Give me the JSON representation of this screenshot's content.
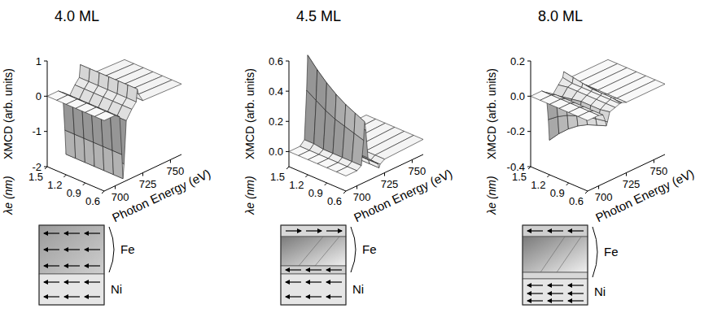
{
  "chart_data": [
    {
      "type": "surface",
      "title": "4.0 ML",
      "xlabel": "Photon Energy (eV)",
      "ylabel": "λe (nm)",
      "zlabel": "XMCD (arb. units)",
      "color": "#222222",
      "x": [
        690,
        700,
        704,
        706,
        707,
        708,
        710,
        715,
        719,
        720,
        721,
        725,
        760
      ],
      "y": [
        0.6,
        0.75,
        0.9,
        1.05,
        1.2,
        1.35,
        1.5
      ],
      "z": [
        [
          0,
          0,
          -0.1,
          -1.2,
          -1.9,
          -1.5,
          -0.3,
          -0.05,
          0.1,
          0.45,
          0.3,
          0.05,
          0
        ],
        [
          0,
          0,
          -0.1,
          -1.2,
          -1.9,
          -1.5,
          -0.3,
          -0.05,
          0.1,
          0.45,
          0.3,
          0.05,
          0
        ],
        [
          0,
          0,
          -0.1,
          -1.2,
          -1.9,
          -1.5,
          -0.3,
          -0.05,
          0.1,
          0.45,
          0.3,
          0.05,
          0
        ],
        [
          0,
          0,
          -0.1,
          -1.2,
          -1.9,
          -1.5,
          -0.3,
          -0.05,
          0.1,
          0.45,
          0.3,
          0.05,
          0
        ],
        [
          0,
          0,
          -0.1,
          -1.2,
          -1.9,
          -1.5,
          -0.3,
          -0.05,
          0.1,
          0.45,
          0.3,
          0.05,
          0
        ],
        [
          0,
          0,
          -0.1,
          -1.2,
          -1.9,
          -1.5,
          -0.3,
          -0.05,
          0.1,
          0.45,
          0.3,
          0.05,
          0
        ],
        [
          0,
          0,
          -0.1,
          -1.2,
          -1.9,
          -1.5,
          -0.3,
          -0.05,
          0.1,
          0.45,
          0.3,
          0.05,
          0
        ]
      ],
      "xlim": [
        690,
        760
      ],
      "xticks": [
        700,
        725,
        750
      ],
      "ylim": [
        0.6,
        1.5
      ],
      "yticks": [
        0.6,
        0.9,
        1.2,
        1.5
      ],
      "zlim": [
        -2,
        1
      ],
      "zticks": [
        -2,
        -1,
        0,
        1
      ]
    },
    {
      "type": "surface",
      "title": "4.5 ML",
      "xlabel": "Photon Energy (eV)",
      "ylabel": "λe (nm)",
      "zlabel": "XMCD (arb. units)",
      "color": "#222222",
      "x": [
        690,
        700,
        704,
        706,
        707,
        708,
        710,
        715,
        719,
        720,
        721,
        725,
        760
      ],
      "y": [
        0.6,
        0.75,
        0.9,
        1.05,
        1.2,
        1.35,
        1.5
      ],
      "z": [
        [
          0,
          0,
          0.02,
          0.18,
          0.3,
          0.24,
          0.05,
          0.01,
          -0.02,
          -0.05,
          -0.03,
          -0.01,
          0
        ],
        [
          0,
          0,
          0.02,
          0.2,
          0.33,
          0.26,
          0.05,
          0.01,
          -0.02,
          -0.05,
          -0.03,
          -0.01,
          0
        ],
        [
          0,
          0,
          0.02,
          0.22,
          0.36,
          0.29,
          0.05,
          0.01,
          -0.02,
          -0.05,
          -0.04,
          -0.01,
          0
        ],
        [
          0,
          0,
          0.02,
          0.24,
          0.4,
          0.32,
          0.06,
          0.01,
          -0.02,
          -0.06,
          -0.04,
          -0.01,
          0
        ],
        [
          0,
          0,
          0.02,
          0.27,
          0.45,
          0.36,
          0.07,
          0.01,
          -0.02,
          -0.07,
          -0.05,
          -0.01,
          0
        ],
        [
          0,
          0,
          0.03,
          0.31,
          0.51,
          0.41,
          0.08,
          0.01,
          -0.03,
          -0.08,
          -0.05,
          -0.01,
          0
        ],
        [
          0,
          0,
          0.03,
          0.35,
          0.58,
          0.46,
          0.09,
          0.01,
          -0.03,
          -0.09,
          -0.06,
          -0.01,
          0
        ]
      ],
      "xlim": [
        690,
        760
      ],
      "xticks": [
        700,
        725,
        750
      ],
      "ylim": [
        0.6,
        1.5
      ],
      "yticks": [
        0.6,
        0.9,
        1.2,
        1.5
      ],
      "zlim": [
        -0.1,
        0.6
      ],
      "zticks": [
        {
          "value": 0,
          "label": "0.0"
        },
        0.2,
        0.4,
        0.6
      ]
    },
    {
      "type": "surface",
      "title": "8.0 ML",
      "xlabel": "Photon Energy (eV)",
      "ylabel": "λe (nm)",
      "zlabel": "XMCD (arb. units)",
      "color": "#222222",
      "x": [
        690,
        700,
        704,
        706,
        707,
        708,
        710,
        715,
        719,
        720,
        721,
        725,
        760
      ],
      "y": [
        0.6,
        0.75,
        0.9,
        1.05,
        1.2,
        1.35,
        1.5
      ],
      "z": [
        [
          0,
          0,
          -0.01,
          -0.05,
          -0.08,
          -0.06,
          -0.01,
          0,
          0.01,
          0.01,
          0.01,
          0,
          0
        ],
        [
          0,
          0,
          -0.01,
          -0.06,
          -0.1,
          -0.08,
          -0.02,
          0,
          0.01,
          0.02,
          0.01,
          0,
          0
        ],
        [
          0,
          0,
          -0.01,
          -0.07,
          -0.12,
          -0.1,
          -0.02,
          0,
          0.01,
          0.02,
          0.01,
          0,
          0
        ],
        [
          0,
          0,
          -0.01,
          -0.09,
          -0.15,
          -0.12,
          -0.02,
          0,
          0.01,
          0.02,
          0.02,
          0,
          0
        ],
        [
          0,
          0,
          -0.01,
          -0.11,
          -0.19,
          -0.15,
          -0.03,
          0,
          0.01,
          0.03,
          0.02,
          0,
          0
        ],
        [
          0,
          0,
          -0.01,
          -0.14,
          -0.24,
          -0.19,
          -0.04,
          0,
          0.01,
          0.04,
          0.02,
          0,
          0
        ],
        [
          0,
          0,
          -0.02,
          -0.18,
          -0.3,
          -0.24,
          -0.05,
          -0.01,
          0.02,
          0.05,
          0.03,
          0,
          0
        ]
      ],
      "xlim": [
        690,
        760
      ],
      "xticks": [
        700,
        725,
        750
      ],
      "ylim": [
        0.6,
        1.5
      ],
      "yticks": [
        0.6,
        0.9,
        1.2,
        1.5
      ],
      "zlim": [
        -0.4,
        0.2
      ],
      "zticks": [
        -0.4,
        -0.2,
        {
          "value": 0,
          "label": "0.0"
        },
        0.2
      ]
    }
  ],
  "diagrams": [
    {
      "upper": "Fe",
      "lower": "Ni"
    },
    {
      "upper": "Fe",
      "lower": "Ni"
    },
    {
      "upper": "Fe",
      "lower": "Ni"
    }
  ]
}
